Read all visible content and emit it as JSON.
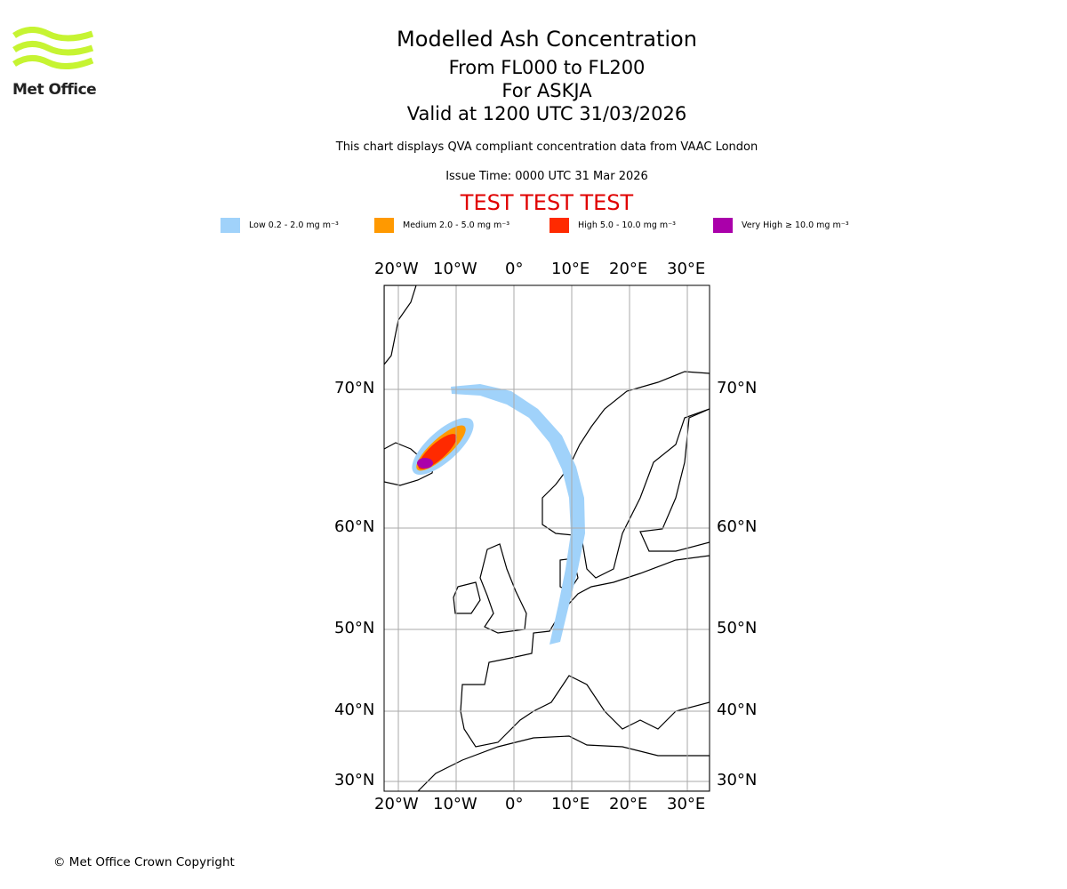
{
  "logo": {
    "text": "Met Office",
    "color": "#c6f432"
  },
  "title": {
    "line1": "Modelled Ash Concentration",
    "line2": "From FL000 to FL200",
    "line3": "For ASKJA",
    "line4": "Valid at 1200 UTC 31/03/2026"
  },
  "subtitle": "This chart displays QVA compliant concentration data from VAAC London",
  "issue_time": "Issue Time: 0000 UTC 31 Mar 2026",
  "test_banner": "TEST TEST TEST",
  "legend": [
    {
      "label": "Low 0.2 - 2.0 mg m⁻³",
      "color": "#a0d2fa"
    },
    {
      "label": "Medium 2.0 - 5.0 mg m⁻³",
      "color": "#ff9900"
    },
    {
      "label": "High 5.0 - 10.0 mg m⁻³",
      "color": "#ff2a00"
    },
    {
      "label": "Very High ≥ 10.0 mg m⁻³",
      "color": "#aa00aa"
    }
  ],
  "lon_ticks": [
    "20°W",
    "10°W",
    "0°",
    "10°E",
    "20°E",
    "30°E"
  ],
  "lat_ticks": [
    "70°N",
    "60°N",
    "50°N",
    "40°N",
    "30°N"
  ],
  "copyright": "© Met Office Crown Copyright"
}
